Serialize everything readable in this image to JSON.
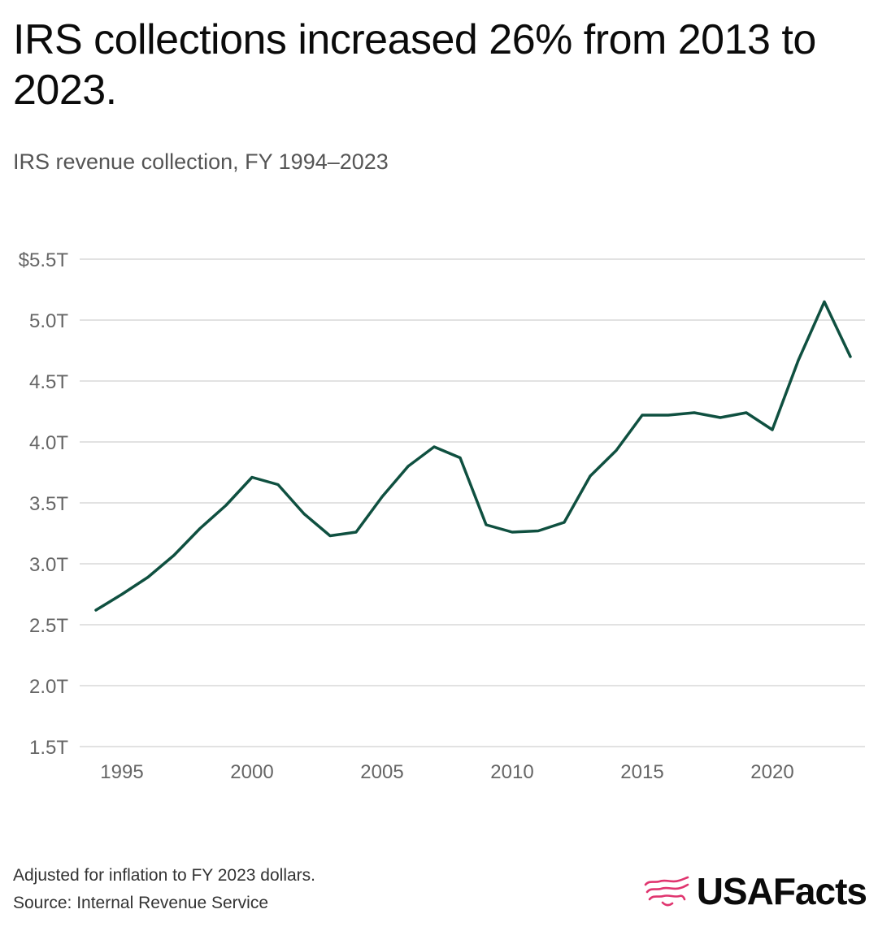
{
  "header": {
    "title": "IRS collections increased 26% from 2013 to 2023.",
    "subtitle": "IRS revenue collection, FY 1994–2023"
  },
  "footer": {
    "note": "Adjusted for inflation to FY 2023 dollars.",
    "source": "Source: Internal Revenue Service",
    "brand": "USAFacts"
  },
  "colors": {
    "line": "#0f5040",
    "grid": "#d9d9d9",
    "brand_icon": "#e0356f"
  },
  "chart_data": {
    "type": "line",
    "title": "IRS revenue collection, FY 1994–2023",
    "xlabel": "",
    "ylabel": "",
    "x": [
      1994,
      1995,
      1996,
      1997,
      1998,
      1999,
      2000,
      2001,
      2002,
      2003,
      2004,
      2005,
      2006,
      2007,
      2008,
      2009,
      2010,
      2011,
      2012,
      2013,
      2014,
      2015,
      2016,
      2017,
      2018,
      2019,
      2020,
      2021,
      2022,
      2023
    ],
    "series": [
      {
        "values": [
          2.62,
          2.75,
          2.89,
          3.07,
          3.29,
          3.48,
          3.71,
          3.65,
          3.41,
          3.23,
          3.26,
          3.55,
          3.8,
          3.96,
          3.87,
          3.32,
          3.26,
          3.27,
          3.34,
          3.72,
          3.93,
          4.22,
          4.22,
          4.24,
          4.2,
          4.24,
          4.1,
          4.67,
          5.15,
          4.7
        ]
      }
    ],
    "ylim": [
      1.5,
      5.5
    ],
    "xlim": [
      1994,
      2023
    ],
    "yticks": [
      1.5,
      2.0,
      2.5,
      3.0,
      3.5,
      4.0,
      4.5,
      5.0,
      5.5
    ],
    "ytick_labels": [
      "1.5T",
      "2.0T",
      "2.5T",
      "3.0T",
      "3.5T",
      "4.0T",
      "4.5T",
      "5.0T",
      "$5.5T"
    ],
    "xticks": [
      1995,
      2000,
      2005,
      2010,
      2015,
      2020
    ],
    "xtick_labels": [
      "1995",
      "2000",
      "2005",
      "2010",
      "2015",
      "2020"
    ],
    "grid": true,
    "legend": "none"
  }
}
